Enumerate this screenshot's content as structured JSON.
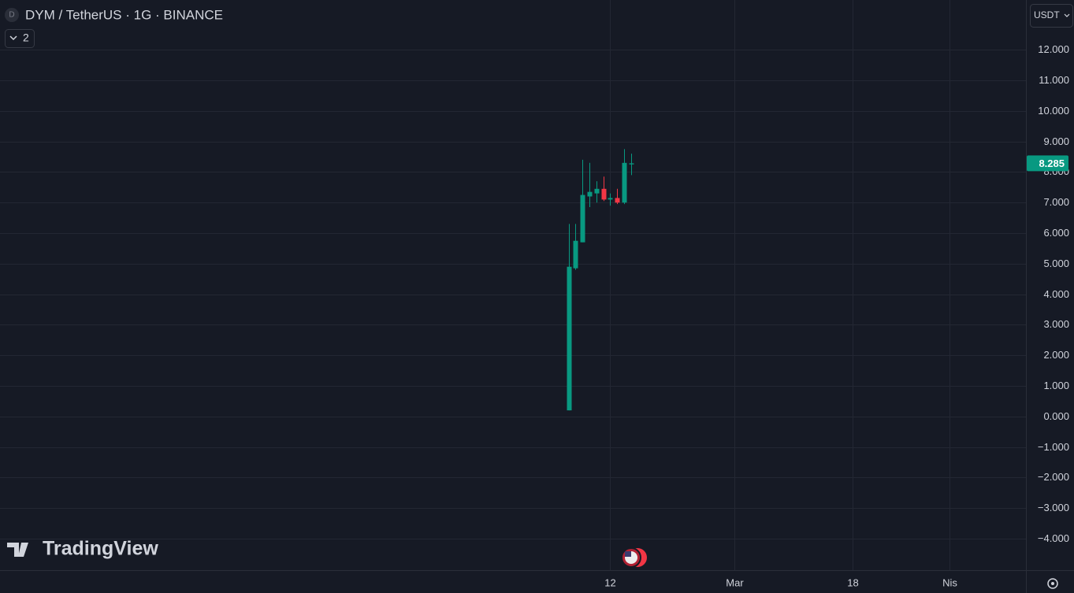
{
  "chart_data": {
    "type": "candlestick",
    "title": "DYM / TetherUS · 1G · BINANCE",
    "symbol_icon": "D",
    "indicator_count": "2",
    "currency": "USDT",
    "logo": "TradingView",
    "x": [
      37,
      38,
      39,
      40,
      41,
      42,
      43,
      44,
      45,
      46
    ],
    "open": [
      0.2,
      4.85,
      5.7,
      7.2,
      7.3,
      7.45,
      7.1,
      7.15,
      7.0,
      8.25
    ],
    "high": [
      6.3,
      6.3,
      8.4,
      8.3,
      7.7,
      7.85,
      7.3,
      7.45,
      8.75,
      8.6
    ],
    "low": [
      0.2,
      4.8,
      5.7,
      6.85,
      7.0,
      7.05,
      6.9,
      6.95,
      6.95,
      7.9
    ],
    "close": [
      4.9,
      5.75,
      7.25,
      7.35,
      7.45,
      7.1,
      7.15,
      7.0,
      8.3,
      8.285
    ],
    "up_color": "#089981",
    "down_color": "#f23645",
    "last_price": 8.285,
    "last_price_label": "8.285",
    "xlim": [
      -45.2,
      103.1
    ],
    "xticks": [
      {
        "value": 43,
        "label": "12"
      },
      {
        "value": 61,
        "label": "Mar"
      },
      {
        "value": 78,
        "label": "18"
      },
      {
        "value": 92,
        "label": "Nis"
      }
    ],
    "ylim": [
      -5.03,
      13.63
    ],
    "yticks": [
      {
        "value": 12,
        "label": "12.000"
      },
      {
        "value": 11,
        "label": "11.000"
      },
      {
        "value": 10,
        "label": "10.000"
      },
      {
        "value": 9,
        "label": "9.000"
      },
      {
        "value": 8,
        "label": "8.000"
      },
      {
        "value": 7,
        "label": "7.000"
      },
      {
        "value": 6,
        "label": "6.000"
      },
      {
        "value": 5,
        "label": "5.000"
      },
      {
        "value": 4,
        "label": "4.000"
      },
      {
        "value": 3,
        "label": "3.000"
      },
      {
        "value": 2,
        "label": "2.000"
      },
      {
        "value": 1,
        "label": "1.000"
      },
      {
        "value": 0,
        "label": "0.000"
      },
      {
        "value": -1,
        "label": "−1.000"
      },
      {
        "value": -2,
        "label": "−2.000"
      },
      {
        "value": -3,
        "label": "−3.000"
      },
      {
        "value": -4,
        "label": "−4.000"
      }
    ],
    "grid": true
  }
}
